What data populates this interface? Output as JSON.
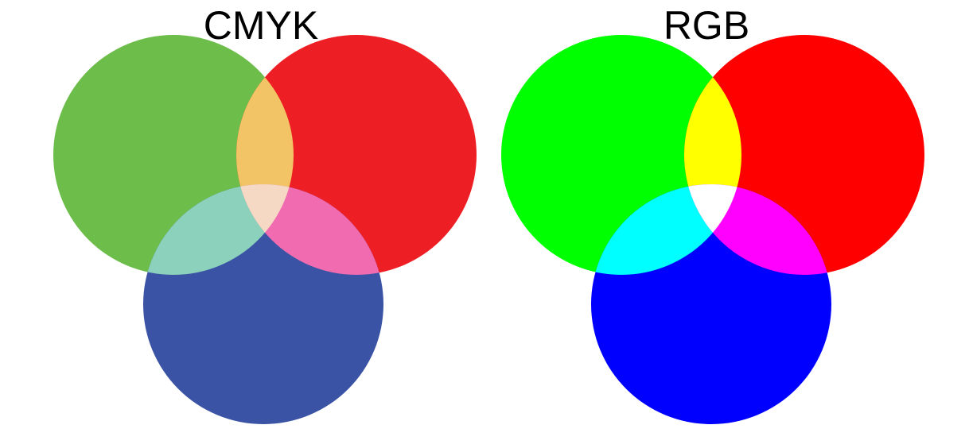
{
  "panels": [
    {
      "title": "CMYK",
      "colors": {
        "green": "#6dbd4b",
        "red": "#ed1f25",
        "blue": "#3a53a4",
        "green_red": "#f2c465",
        "green_blue": "#8cd1bb",
        "red_blue": "#f06baf",
        "center": "#f5d9c4"
      }
    },
    {
      "title": "RGB",
      "colors": {
        "green": "#00ff00",
        "red": "#ff0000",
        "blue": "#0000ff",
        "green_red": "#ffff00",
        "green_blue": "#00ffff",
        "red_blue": "#ff00ff",
        "center": "#ffffff"
      }
    }
  ]
}
